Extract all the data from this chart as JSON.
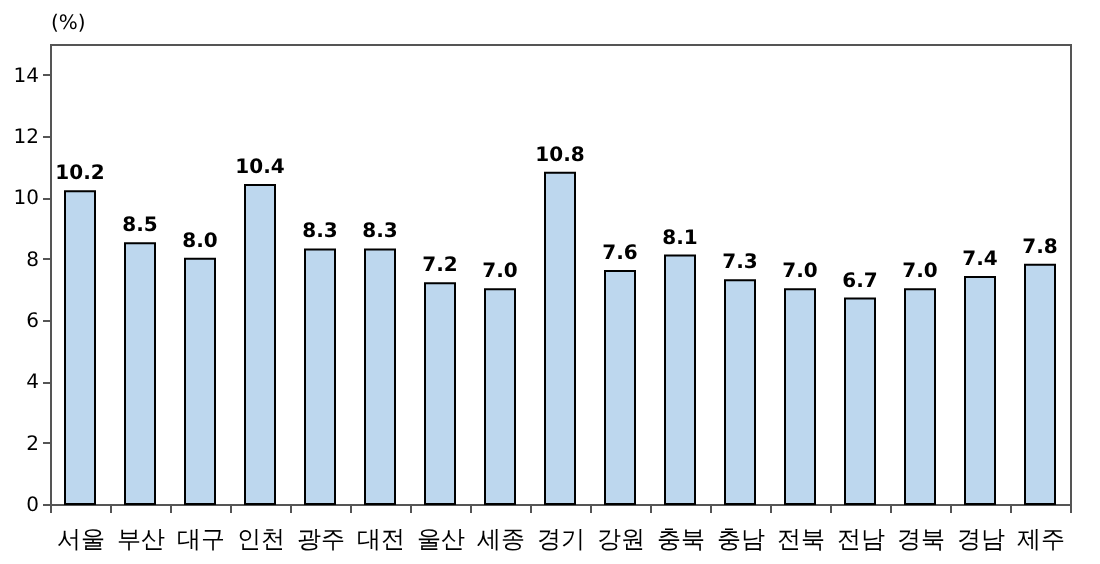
{
  "chart_data": {
    "type": "bar",
    "ylabel": "(%)",
    "categories": [
      "서울",
      "부산",
      "대구",
      "인천",
      "광주",
      "대전",
      "울산",
      "세종",
      "경기",
      "강원",
      "충북",
      "충남",
      "전북",
      "전남",
      "경북",
      "경남",
      "제주"
    ],
    "values": [
      10.2,
      8.5,
      8.0,
      10.4,
      8.3,
      8.3,
      7.2,
      7.0,
      10.8,
      7.6,
      8.1,
      7.3,
      7.0,
      6.7,
      7.0,
      7.4,
      7.8
    ],
    "value_labels": [
      "10.2",
      "8.5",
      "8.0",
      "10.4",
      "8.3",
      "8.3",
      "7.2",
      "7.0",
      "10.8",
      "7.6",
      "8.1",
      "7.3",
      "7.0",
      "6.7",
      "7.0",
      "7.4",
      "7.8"
    ],
    "color": "#bdd7ee",
    "ylim": [
      0,
      15
    ],
    "yticks": [
      0,
      2,
      4,
      6,
      8,
      10,
      12,
      14
    ],
    "grid": false
  }
}
